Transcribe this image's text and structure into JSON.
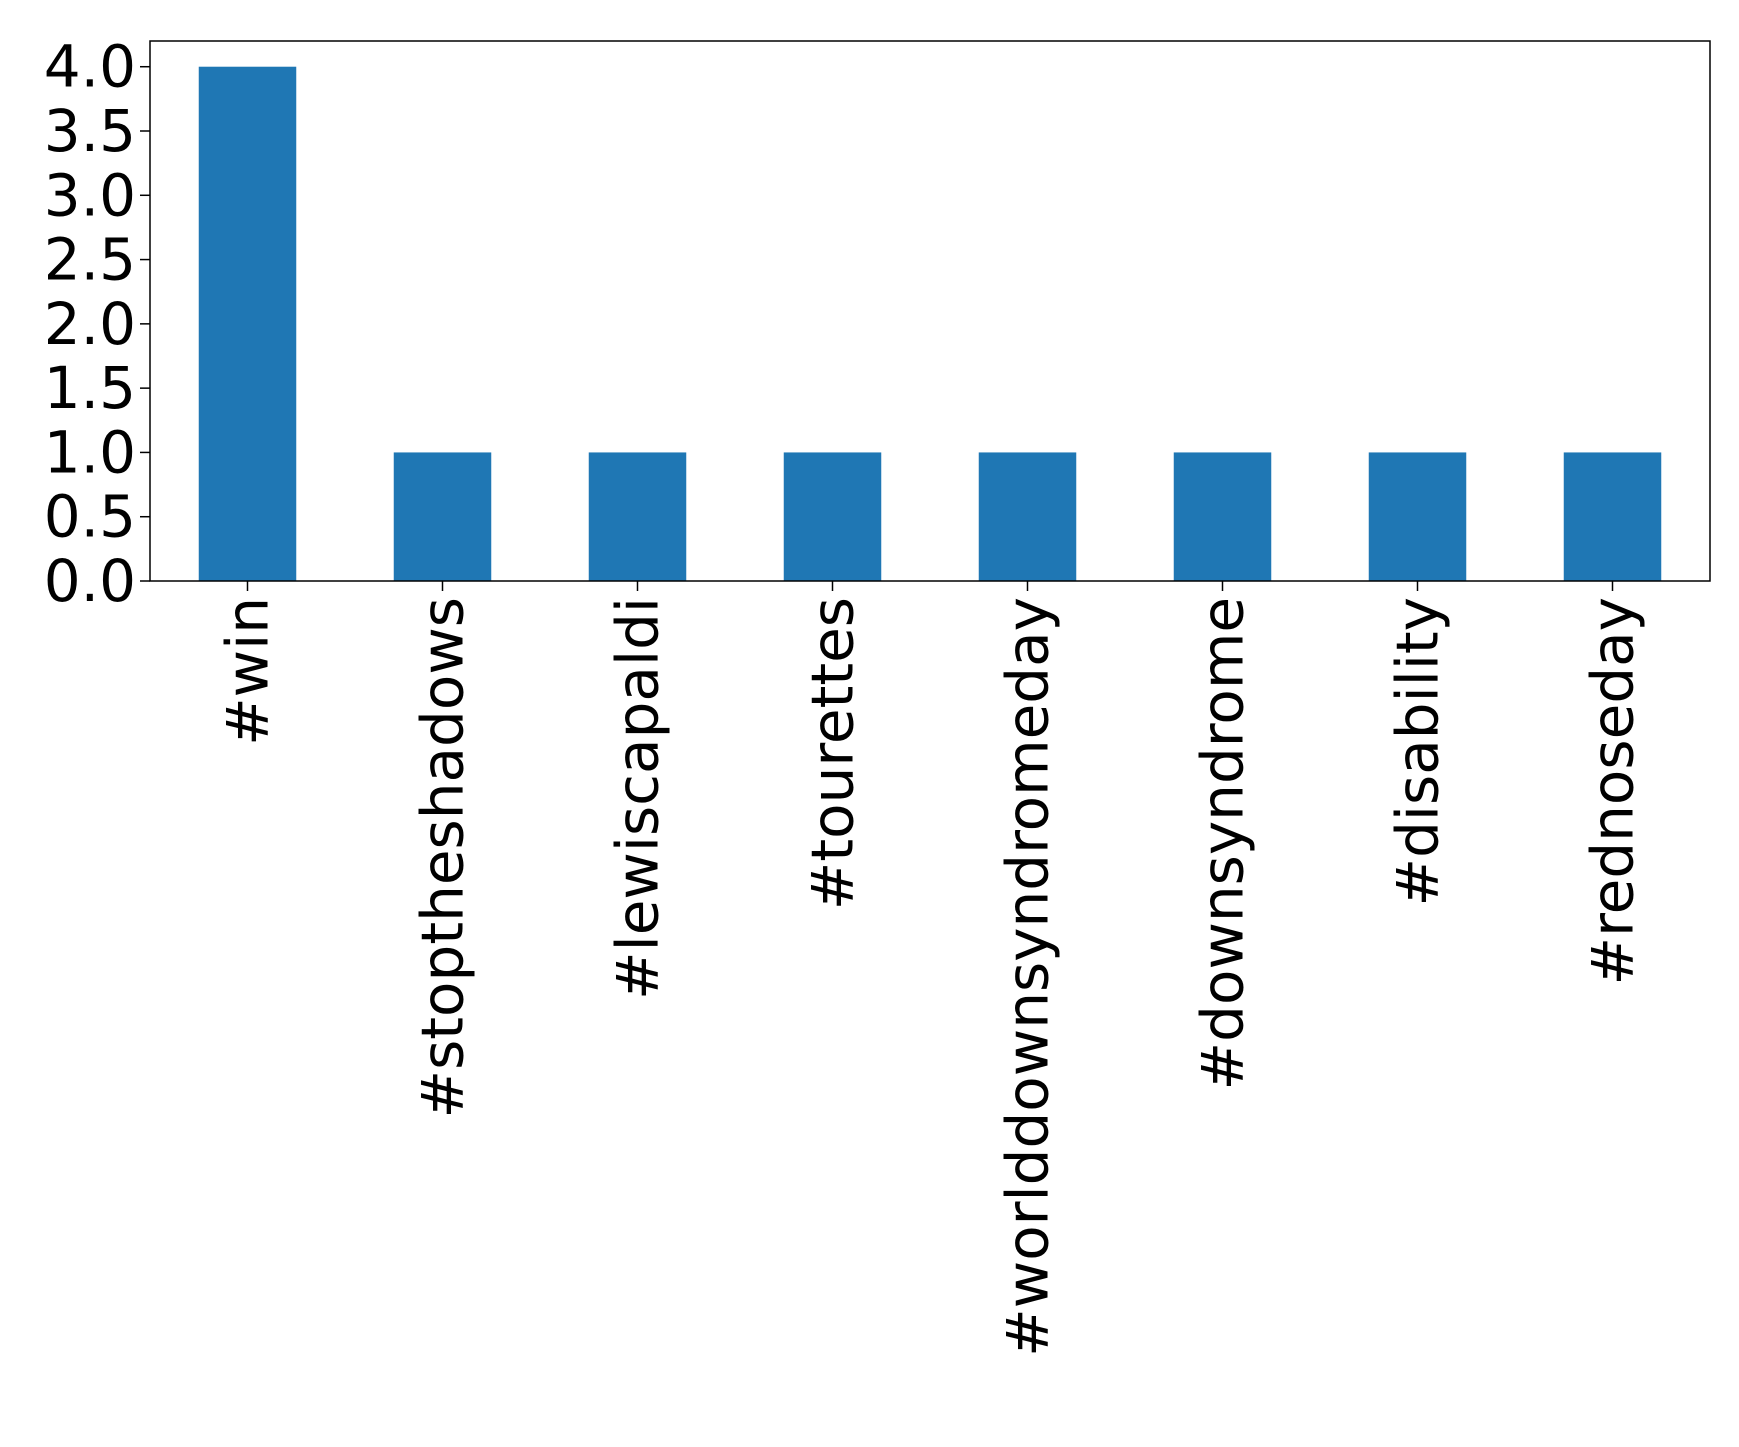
{
  "chart_data": {
    "type": "bar",
    "categories": [
      "#win",
      "#stoptheshadows",
      "#lewiscapaldi",
      "#tourettes",
      "#worlddownsyndromeday",
      "#downsyndrome",
      "#disability",
      "#rednoseday"
    ],
    "values": [
      4,
      1,
      1,
      1,
      1,
      1,
      1,
      1
    ],
    "title": "",
    "xlabel": "",
    "ylabel": "",
    "ylim": [
      0,
      4.2
    ],
    "yticks": [
      "0.0",
      "0.5",
      "1.0",
      "1.5",
      "2.0",
      "2.5",
      "3.0",
      "3.5",
      "4.0"
    ],
    "ytick_values": [
      0,
      0.5,
      1.0,
      1.5,
      2.0,
      2.5,
      3.0,
      3.5,
      4.0
    ],
    "bar_color": "#1f77b4",
    "grid": false,
    "legend": "none"
  }
}
